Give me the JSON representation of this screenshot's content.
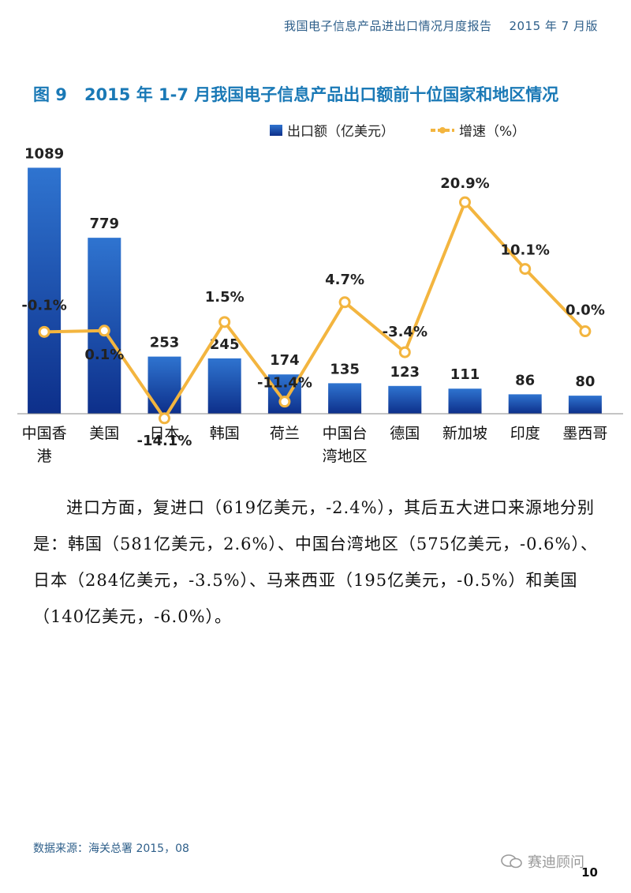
{
  "header": {
    "report_title": "我国电子信息产品进出口情况月度报告",
    "edition": "2015 年 7 月版"
  },
  "figure": {
    "number": "图 9",
    "title": "2015 年 1-7 月我国电子信息产品出口额前十位国家和地区情况"
  },
  "legend": {
    "bar_label": "出口额（亿美元）",
    "line_label": "增速（%）"
  },
  "chart_data": {
    "type": "bar",
    "categories": [
      "中国香港",
      "美国",
      "日本",
      "韩国",
      "荷兰",
      "中国台湾地区",
      "德国",
      "新加坡",
      "印度",
      "墨西哥"
    ],
    "category_lines": [
      [
        "中国香",
        "港"
      ],
      [
        "美国"
      ],
      [
        "日本"
      ],
      [
        "韩国"
      ],
      [
        "荷兰"
      ],
      [
        "中国台",
        "湾地区"
      ],
      [
        "德国"
      ],
      [
        "新加坡"
      ],
      [
        "印度"
      ],
      [
        "墨西哥"
      ]
    ],
    "series": [
      {
        "name": "出口额（亿美元）",
        "type": "bar",
        "values": [
          1089,
          779,
          253,
          245,
          174,
          135,
          123,
          111,
          86,
          80
        ],
        "labels": [
          "1089",
          "779",
          "253",
          "245",
          "174",
          "135",
          "123",
          "111",
          "86",
          "80"
        ]
      },
      {
        "name": "增速（%）",
        "type": "line",
        "values": [
          -0.1,
          0.1,
          -14.1,
          1.5,
          -11.4,
          4.7,
          -3.4,
          20.9,
          10.1,
          0.0
        ],
        "labels": [
          "-0.1%",
          "0.1%",
          "-14.1%",
          "1.5%",
          "-11.4%",
          "4.7%",
          "-3.4%",
          "20.9%",
          "10.1%",
          "0.0%"
        ]
      }
    ],
    "colors": {
      "bar_top": "#2f74d0",
      "bar_bottom": "#0d2f8a",
      "line": "#f3b53f",
      "marker_fill": "#ffffff"
    },
    "bar_ylim": [
      0,
      1150
    ],
    "line_ylim": [
      -25,
      30
    ],
    "grid": false,
    "legend_position": "top"
  },
  "body": {
    "paragraph": "进口方面，复进口（619亿美元，-2.4%），其后五大进口来源地分别是：韩国（581亿美元，2.6%）、中国台湾地区（575亿美元，-0.6%）、日本（284亿美元，-3.5%）、马来西亚（195亿美元，-0.5%）和美国（140亿美元，-6.0%）。"
  },
  "footer": {
    "source": "数据来源：海关总署 2015，08",
    "watermark": "赛迪顾问",
    "page_number": "10"
  }
}
